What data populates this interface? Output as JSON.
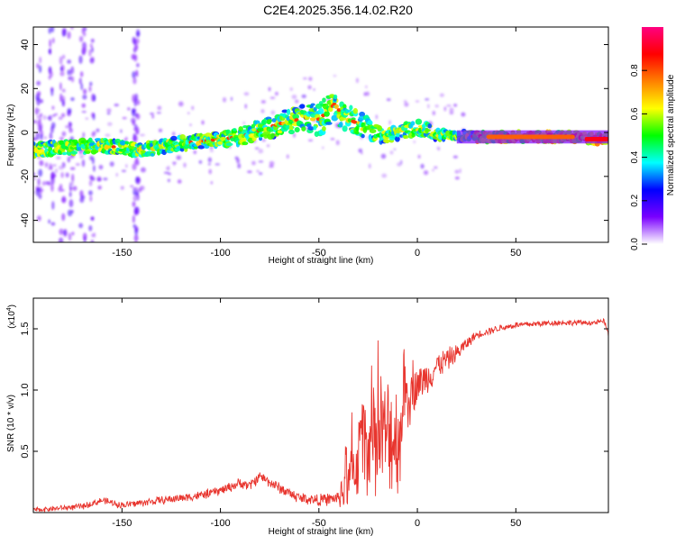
{
  "title": "C2E4.2025.356.14.02.R20",
  "colors": {
    "snr_line": "#e8352e",
    "axis": "#000000"
  },
  "chart_data": [
    {
      "type": "heatmap",
      "name": "spectrogram",
      "xlabel": "Height of straight line (km)",
      "ylabel": "Frequency (Hz)",
      "xlim": [
        -195,
        97
      ],
      "ylim": [
        -50,
        48
      ],
      "xticks": [
        -150,
        -100,
        -50,
        0,
        50
      ],
      "yticks": [
        -40,
        -20,
        0,
        20,
        40
      ],
      "xtick_labels": [
        "-150",
        "-100",
        "-50",
        "0",
        "50"
      ],
      "ytick_labels": [
        "-40",
        "-20",
        "0",
        "20",
        "40"
      ],
      "ridge": {
        "x": [
          -195,
          -180,
          -160,
          -140,
          -120,
          -100,
          -90,
          -80,
          -70,
          -60,
          -55,
          -50,
          -45,
          -42,
          -38,
          -35,
          -30,
          -25,
          -20,
          -15,
          -10,
          -5,
          0,
          5,
          10,
          20,
          30,
          40,
          50,
          60,
          70,
          80,
          90,
          97
        ],
        "y": [
          -8,
          -7,
          -6,
          -8,
          -5,
          -3,
          -2,
          1,
          4,
          6,
          7,
          6,
          10,
          13,
          8,
          6,
          4,
          2,
          -1,
          -2,
          0,
          1,
          2,
          1,
          -1,
          -1,
          -2,
          -2,
          -2,
          -2,
          -2,
          -2,
          -3,
          -3
        ],
        "width": [
          4,
          4,
          4,
          4,
          4,
          4,
          5,
          6,
          7,
          8,
          9,
          10,
          9,
          9,
          8,
          8,
          7,
          6,
          5,
          4,
          4,
          4,
          4,
          4,
          3,
          3,
          3,
          3,
          3,
          3,
          3,
          3,
          3,
          3
        ]
      },
      "hot_segment": {
        "x": [
          35,
          80
        ],
        "y": -2
      },
      "colorbar": {
        "label": "Normalized spectral amplitude",
        "range": [
          0,
          1
        ],
        "ticks": [
          0.0,
          0.2,
          0.4,
          0.6,
          0.8
        ],
        "tick_labels": [
          "0.0",
          "0.2",
          "0.4",
          "0.6",
          "0.8"
        ],
        "stops": [
          "#ffffff",
          "#7a00ff",
          "#0000ff",
          "#00ffff",
          "#00ff00",
          "#ffff00",
          "#ff8000",
          "#ff0000",
          "#ff0080"
        ]
      }
    },
    {
      "type": "line",
      "name": "snr",
      "xlabel": "Height of straight line (km)",
      "ylabel": "SNR (10 * v/v)",
      "multiplier_base": "(x10",
      "multiplier_exp": "4",
      "multiplier_end": ")",
      "xlim": [
        -195,
        97
      ],
      "ylim": [
        0,
        1.75
      ],
      "xticks": [
        -150,
        -100,
        -50,
        0,
        50
      ],
      "yticks": [
        0.5,
        1.0,
        1.5
      ],
      "xtick_labels": [
        "-150",
        "-100",
        "-50",
        "0",
        "50"
      ],
      "ytick_labels": [
        "0.5",
        "1.0",
        "1.5"
      ],
      "envelope": {
        "x": [
          -195,
          -170,
          -160,
          -150,
          -130,
          -110,
          -100,
          -90,
          -85,
          -80,
          -70,
          -60,
          -50,
          -40,
          -36,
          -33,
          -30,
          -25,
          -20,
          -15,
          -10,
          -5,
          0,
          5,
          10,
          15,
          20,
          25,
          30,
          40,
          50,
          60,
          70,
          80,
          90,
          95,
          97
        ],
        "y": [
          0.02,
          0.05,
          0.1,
          0.06,
          0.1,
          0.14,
          0.18,
          0.24,
          0.22,
          0.3,
          0.2,
          0.12,
          0.1,
          0.12,
          0.3,
          0.5,
          0.7,
          0.9,
          0.8,
          1.0,
          0.95,
          1.0,
          1.05,
          1.1,
          1.2,
          1.25,
          1.3,
          1.38,
          1.45,
          1.5,
          1.53,
          1.54,
          1.55,
          1.55,
          1.55,
          1.56,
          1.45
        ]
      },
      "noise_scale": {
        "x": [
          -195,
          -40,
          -35,
          -10,
          0,
          30,
          97
        ],
        "y": [
          0.02,
          0.05,
          0.6,
          0.5,
          0.15,
          0.03,
          0.02
        ]
      }
    }
  ]
}
